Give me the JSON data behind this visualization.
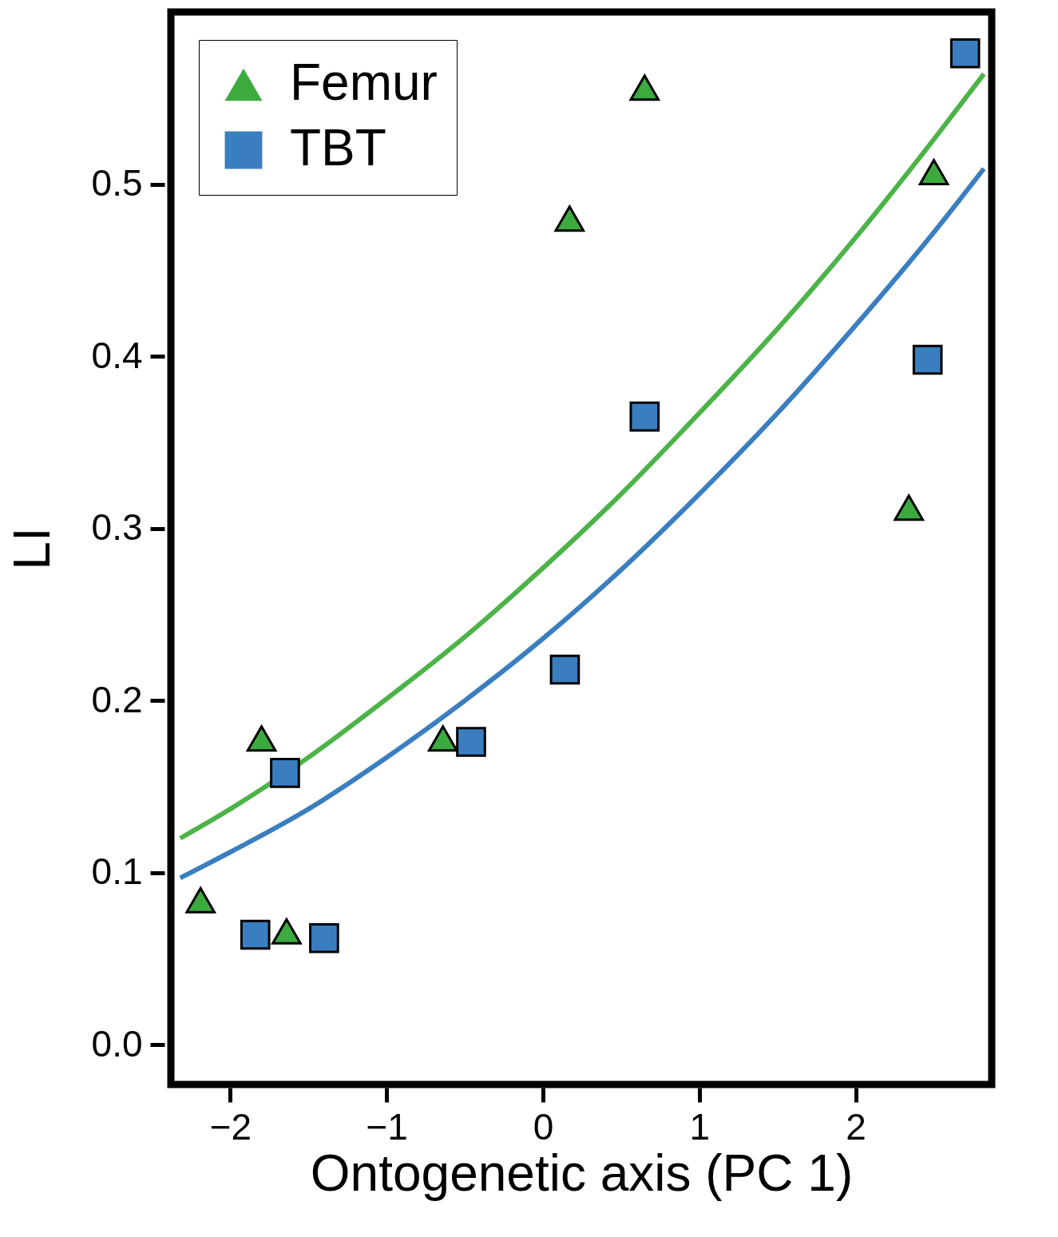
{
  "chart_data": {
    "type": "scatter",
    "xlabel": "Ontogenetic axis (PC 1)",
    "ylabel": "LI",
    "xlim": [
      -2.38,
      2.87
    ],
    "ylim": [
      -0.023,
      0.6
    ],
    "xticks": [
      -2,
      -1,
      0,
      1,
      2
    ],
    "yticks": [
      {
        "value": 0,
        "label": "0.0"
      },
      0.1,
      0.2,
      0.3,
      0.4,
      0.5
    ],
    "grid": false,
    "legend": "top left",
    "series": [
      {
        "name": "Femur",
        "color": "#3daa3f",
        "marker": "triangle",
        "x": [
          -2.19,
          -1.8,
          -1.64,
          -0.64,
          0.17,
          0.65,
          2.34,
          2.5
        ],
        "values": [
          0.084,
          0.178,
          0.066,
          0.178,
          0.48,
          0.556,
          0.312,
          0.507
        ]
      },
      {
        "name": "TBT",
        "color": "#3a7ebf",
        "marker": "square",
        "x": [
          -1.84,
          -1.65,
          -1.4,
          -0.46,
          0.14,
          0.65,
          2.46,
          2.7
        ],
        "values": [
          0.064,
          0.158,
          0.062,
          0.176,
          0.218,
          0.365,
          0.398,
          0.576
        ]
      },
      {
        "type": "line",
        "color": "#4cb348",
        "x": [
          -2.32,
          -2,
          -1.5,
          -1,
          -0.5,
          0,
          0.5,
          1,
          1.5,
          2,
          2.5,
          2.82
        ],
        "values": [
          0.12,
          0.137,
          0.167,
          0.201,
          0.237,
          0.277,
          0.32,
          0.367,
          0.416,
          0.469,
          0.526,
          0.564
        ]
      },
      {
        "type": "line",
        "color": "#3a7ebf",
        "x": [
          -2.32,
          -2,
          -1.5,
          -1,
          -0.5,
          0,
          0.5,
          1,
          1.5,
          2,
          2.5,
          2.82
        ],
        "values": [
          0.097,
          0.112,
          0.137,
          0.167,
          0.2,
          0.236,
          0.276,
          0.32,
          0.367,
          0.418,
          0.472,
          0.509
        ]
      }
    ]
  }
}
